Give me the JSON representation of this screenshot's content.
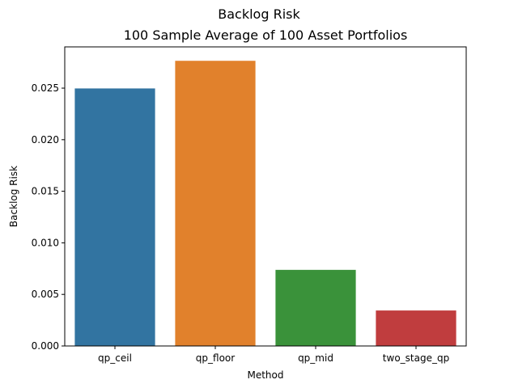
{
  "chart_data": {
    "type": "bar",
    "suptitle": "Backlog Risk",
    "title": "100 Sample Average of 100 Asset Portfolios",
    "xlabel": "Method",
    "ylabel": "Backlog Risk",
    "categories": [
      "qp_ceil",
      "qp_floor",
      "qp_mid",
      "two_stage_qp"
    ],
    "values": [
      0.02497,
      0.02765,
      0.00738,
      0.00344
    ],
    "colors": [
      "#3274a1",
      "#e1812c",
      "#3a923a",
      "#c03d3e"
    ],
    "ylim": [
      0,
      0.029
    ],
    "yticks": [
      "0.000",
      "0.005",
      "0.010",
      "0.015",
      "0.020",
      "0.025"
    ],
    "grid": false,
    "legend": "none"
  }
}
